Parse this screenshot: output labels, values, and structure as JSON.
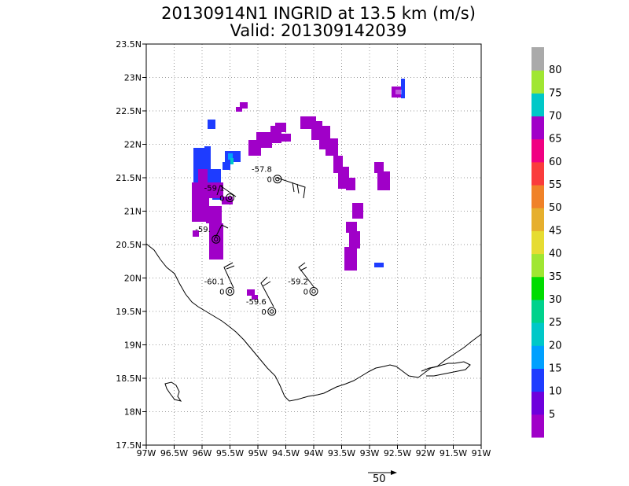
{
  "title": {
    "line1": "20130914N1 INGRID at 13.5 km (m/s)",
    "line2": "Valid: 201309142039"
  },
  "map": {
    "lat_ticks": [
      "23.5N",
      "23N",
      "22.5N",
      "22N",
      "21.5N",
      "21N",
      "20.5N",
      "20N",
      "19.5N",
      "19N",
      "18.5N",
      "18N",
      "17.5N"
    ],
    "lon_ticks": [
      "97W",
      "96.5W",
      "96W",
      "95.5W",
      "95W",
      "94.5W",
      "94W",
      "93.5W",
      "93W",
      "92.5W",
      "92W",
      "91.5W",
      "91W"
    ],
    "lon_range": [
      -97,
      -91
    ],
    "lat_range": [
      17.5,
      23.5
    ],
    "grid": true
  },
  "colorbar": {
    "labels": [
      "5",
      "10",
      "15",
      "20",
      "25",
      "30",
      "35",
      "40",
      "45",
      "50",
      "55",
      "60",
      "65",
      "70",
      "75",
      "80"
    ],
    "colors": [
      "#a000c8",
      "#6e00dc",
      "#1e3cff",
      "#00a0ff",
      "#00c8c8",
      "#00d28c",
      "#00dc00",
      "#a0e632",
      "#e6dc32",
      "#e6af2d",
      "#f08228",
      "#fa3c3c",
      "#f00082",
      "#a000c8",
      "#00c8c8",
      "#a0e632",
      "#aaaaaa"
    ]
  },
  "stations": [
    {
      "label": "-57.8",
      "sub": "0",
      "lon": -94.65,
      "lat": 21.48
    },
    {
      "label": "-59.1",
      "sub": "0",
      "lon": -95.5,
      "lat": 21.2
    },
    {
      "label": "-59.",
      "sub": "",
      "lon": -95.75,
      "lat": 20.58
    },
    {
      "label": "-60.1",
      "sub": "0",
      "lon": -95.5,
      "lat": 19.8
    },
    {
      "label": "-59.2",
      "sub": "0",
      "lon": -94.0,
      "lat": 19.8
    },
    {
      "label": "-59.6",
      "sub": "0",
      "lon": -94.75,
      "lat": 19.5
    }
  ],
  "reference_vector": {
    "label": "50"
  }
}
